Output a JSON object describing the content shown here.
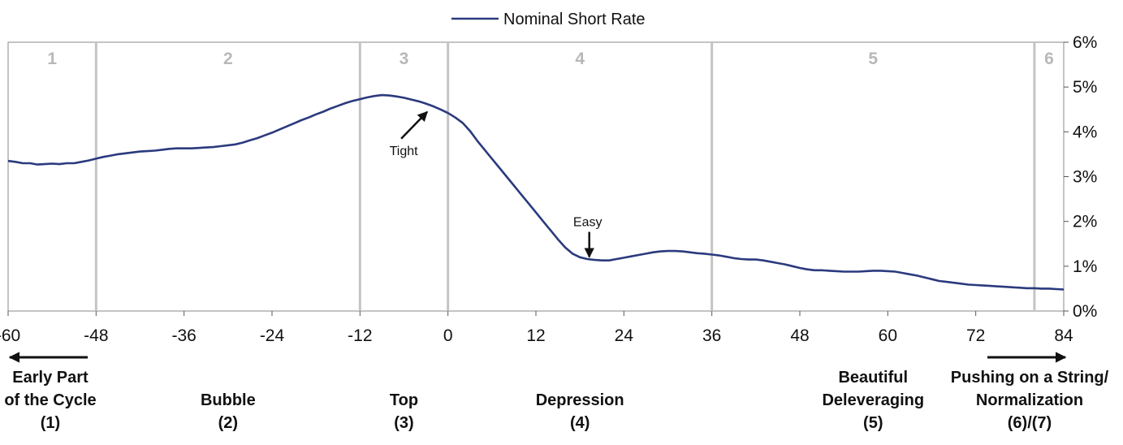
{
  "chart_data": {
    "type": "line",
    "legend": {
      "position": "top-center",
      "entries": [
        "Nominal Short Rate"
      ]
    },
    "series": [
      {
        "name": "Nominal Short Rate",
        "color": "#2b3a7e",
        "x": [
          -60,
          -59,
          -58,
          -57,
          -56,
          -55,
          -54,
          -53,
          -52,
          -51,
          -50,
          -49,
          -48,
          -47,
          -46,
          -45,
          -44,
          -43,
          -42,
          -41,
          -40,
          -39,
          -38,
          -37,
          -36,
          -35,
          -34,
          -33,
          -32,
          -31,
          -30,
          -29,
          -28,
          -27,
          -26,
          -25,
          -24,
          -23,
          -22,
          -21,
          -20,
          -19,
          -18,
          -17,
          -16,
          -15,
          -14,
          -13,
          -12,
          -11,
          -10,
          -9,
          -8,
          -7,
          -6,
          -5,
          -4,
          -3,
          -2,
          -1,
          0,
          1,
          2,
          3,
          4,
          5,
          6,
          7,
          8,
          9,
          10,
          11,
          12,
          13,
          14,
          15,
          16,
          17,
          18,
          19,
          20,
          21,
          22,
          23,
          24,
          25,
          26,
          27,
          28,
          29,
          30,
          31,
          32,
          33,
          34,
          35,
          36,
          37,
          38,
          39,
          40,
          41,
          42,
          43,
          44,
          45,
          46,
          47,
          48,
          49,
          50,
          51,
          52,
          53,
          54,
          55,
          56,
          57,
          58,
          59,
          60,
          61,
          62,
          63,
          64,
          65,
          66,
          67,
          68,
          69,
          70,
          71,
          72,
          73,
          74,
          75,
          76,
          77,
          78,
          79,
          80,
          81,
          82,
          83,
          84
        ],
        "y": [
          3.35,
          3.33,
          3.3,
          3.3,
          3.27,
          3.28,
          3.29,
          3.28,
          3.3,
          3.3,
          3.33,
          3.36,
          3.4,
          3.44,
          3.47,
          3.5,
          3.52,
          3.54,
          3.56,
          3.57,
          3.58,
          3.6,
          3.62,
          3.63,
          3.63,
          3.63,
          3.64,
          3.65,
          3.66,
          3.68,
          3.7,
          3.72,
          3.76,
          3.81,
          3.86,
          3.92,
          3.98,
          4.05,
          4.12,
          4.19,
          4.26,
          4.32,
          4.39,
          4.45,
          4.52,
          4.58,
          4.64,
          4.69,
          4.73,
          4.77,
          4.8,
          4.82,
          4.81,
          4.79,
          4.76,
          4.72,
          4.68,
          4.63,
          4.57,
          4.5,
          4.42,
          4.32,
          4.2,
          4.02,
          3.8,
          3.6,
          3.4,
          3.2,
          3.0,
          2.8,
          2.6,
          2.4,
          2.2,
          2.0,
          1.8,
          1.6,
          1.42,
          1.28,
          1.2,
          1.16,
          1.14,
          1.13,
          1.13,
          1.16,
          1.19,
          1.22,
          1.25,
          1.28,
          1.31,
          1.33,
          1.34,
          1.34,
          1.33,
          1.31,
          1.29,
          1.28,
          1.26,
          1.24,
          1.21,
          1.18,
          1.16,
          1.15,
          1.15,
          1.13,
          1.1,
          1.07,
          1.04,
          1.0,
          0.96,
          0.93,
          0.91,
          0.91,
          0.9,
          0.89,
          0.88,
          0.88,
          0.88,
          0.89,
          0.9,
          0.9,
          0.89,
          0.88,
          0.85,
          0.82,
          0.79,
          0.75,
          0.71,
          0.67,
          0.65,
          0.63,
          0.61,
          0.59,
          0.58,
          0.57,
          0.56,
          0.55,
          0.54,
          0.53,
          0.52,
          0.51,
          0.51,
          0.5,
          0.5,
          0.49,
          0.48
        ]
      }
    ],
    "x_ticks": [
      "-60",
      "-48",
      "-36",
      "-24",
      "-12",
      "0",
      "12",
      "24",
      "36",
      "48",
      "60",
      "72",
      "84"
    ],
    "x_tick_values": [
      -60,
      -48,
      -36,
      -24,
      -12,
      0,
      12,
      24,
      36,
      48,
      60,
      72,
      84
    ],
    "xlim": [
      -60,
      84
    ],
    "y_ticks": [
      "0%",
      "1%",
      "2%",
      "3%",
      "4%",
      "5%",
      "6%"
    ],
    "y_tick_values": [
      0,
      1,
      2,
      3,
      4,
      5,
      6
    ],
    "ylim": [
      0,
      6
    ],
    "y_axis_side": "right",
    "grid": false,
    "phase_dividers_x": [
      -48,
      -12,
      0,
      36,
      80
    ],
    "phase_numbers": [
      {
        "label": "1",
        "x": -54
      },
      {
        "label": "2",
        "x": -30
      },
      {
        "label": "3",
        "x": -6
      },
      {
        "label": "4",
        "x": 18
      },
      {
        "label": "5",
        "x": 58
      },
      {
        "label": "6",
        "x": 82
      }
    ],
    "annotations": [
      {
        "text": "Tight",
        "point_x": -2.5,
        "point_y": 4.5
      },
      {
        "text": "Easy",
        "point_x": 19.5,
        "point_y": 1.15
      }
    ],
    "bottom_labels": [
      {
        "lines": [
          "Early Part",
          "of the Cycle",
          "(1)"
        ],
        "x": -54
      },
      {
        "lines": [
          "Bubble",
          "(2)"
        ],
        "x": -30
      },
      {
        "lines": [
          "Top",
          "(3)"
        ],
        "x": -6
      },
      {
        "lines": [
          "Depression",
          "(4)"
        ],
        "x": 18
      },
      {
        "lines": [
          "Beautiful",
          "Deleveraging",
          "(5)"
        ],
        "x": 58
      },
      {
        "lines": [
          "Pushing on a String/",
          "Normalization",
          "(6)/(7)"
        ],
        "x": 82
      }
    ],
    "colors": {
      "line": "#2b3a7e",
      "divider": "#c4c4c4",
      "phase_number": "#b8b8b8",
      "axis": "#555555"
    }
  }
}
